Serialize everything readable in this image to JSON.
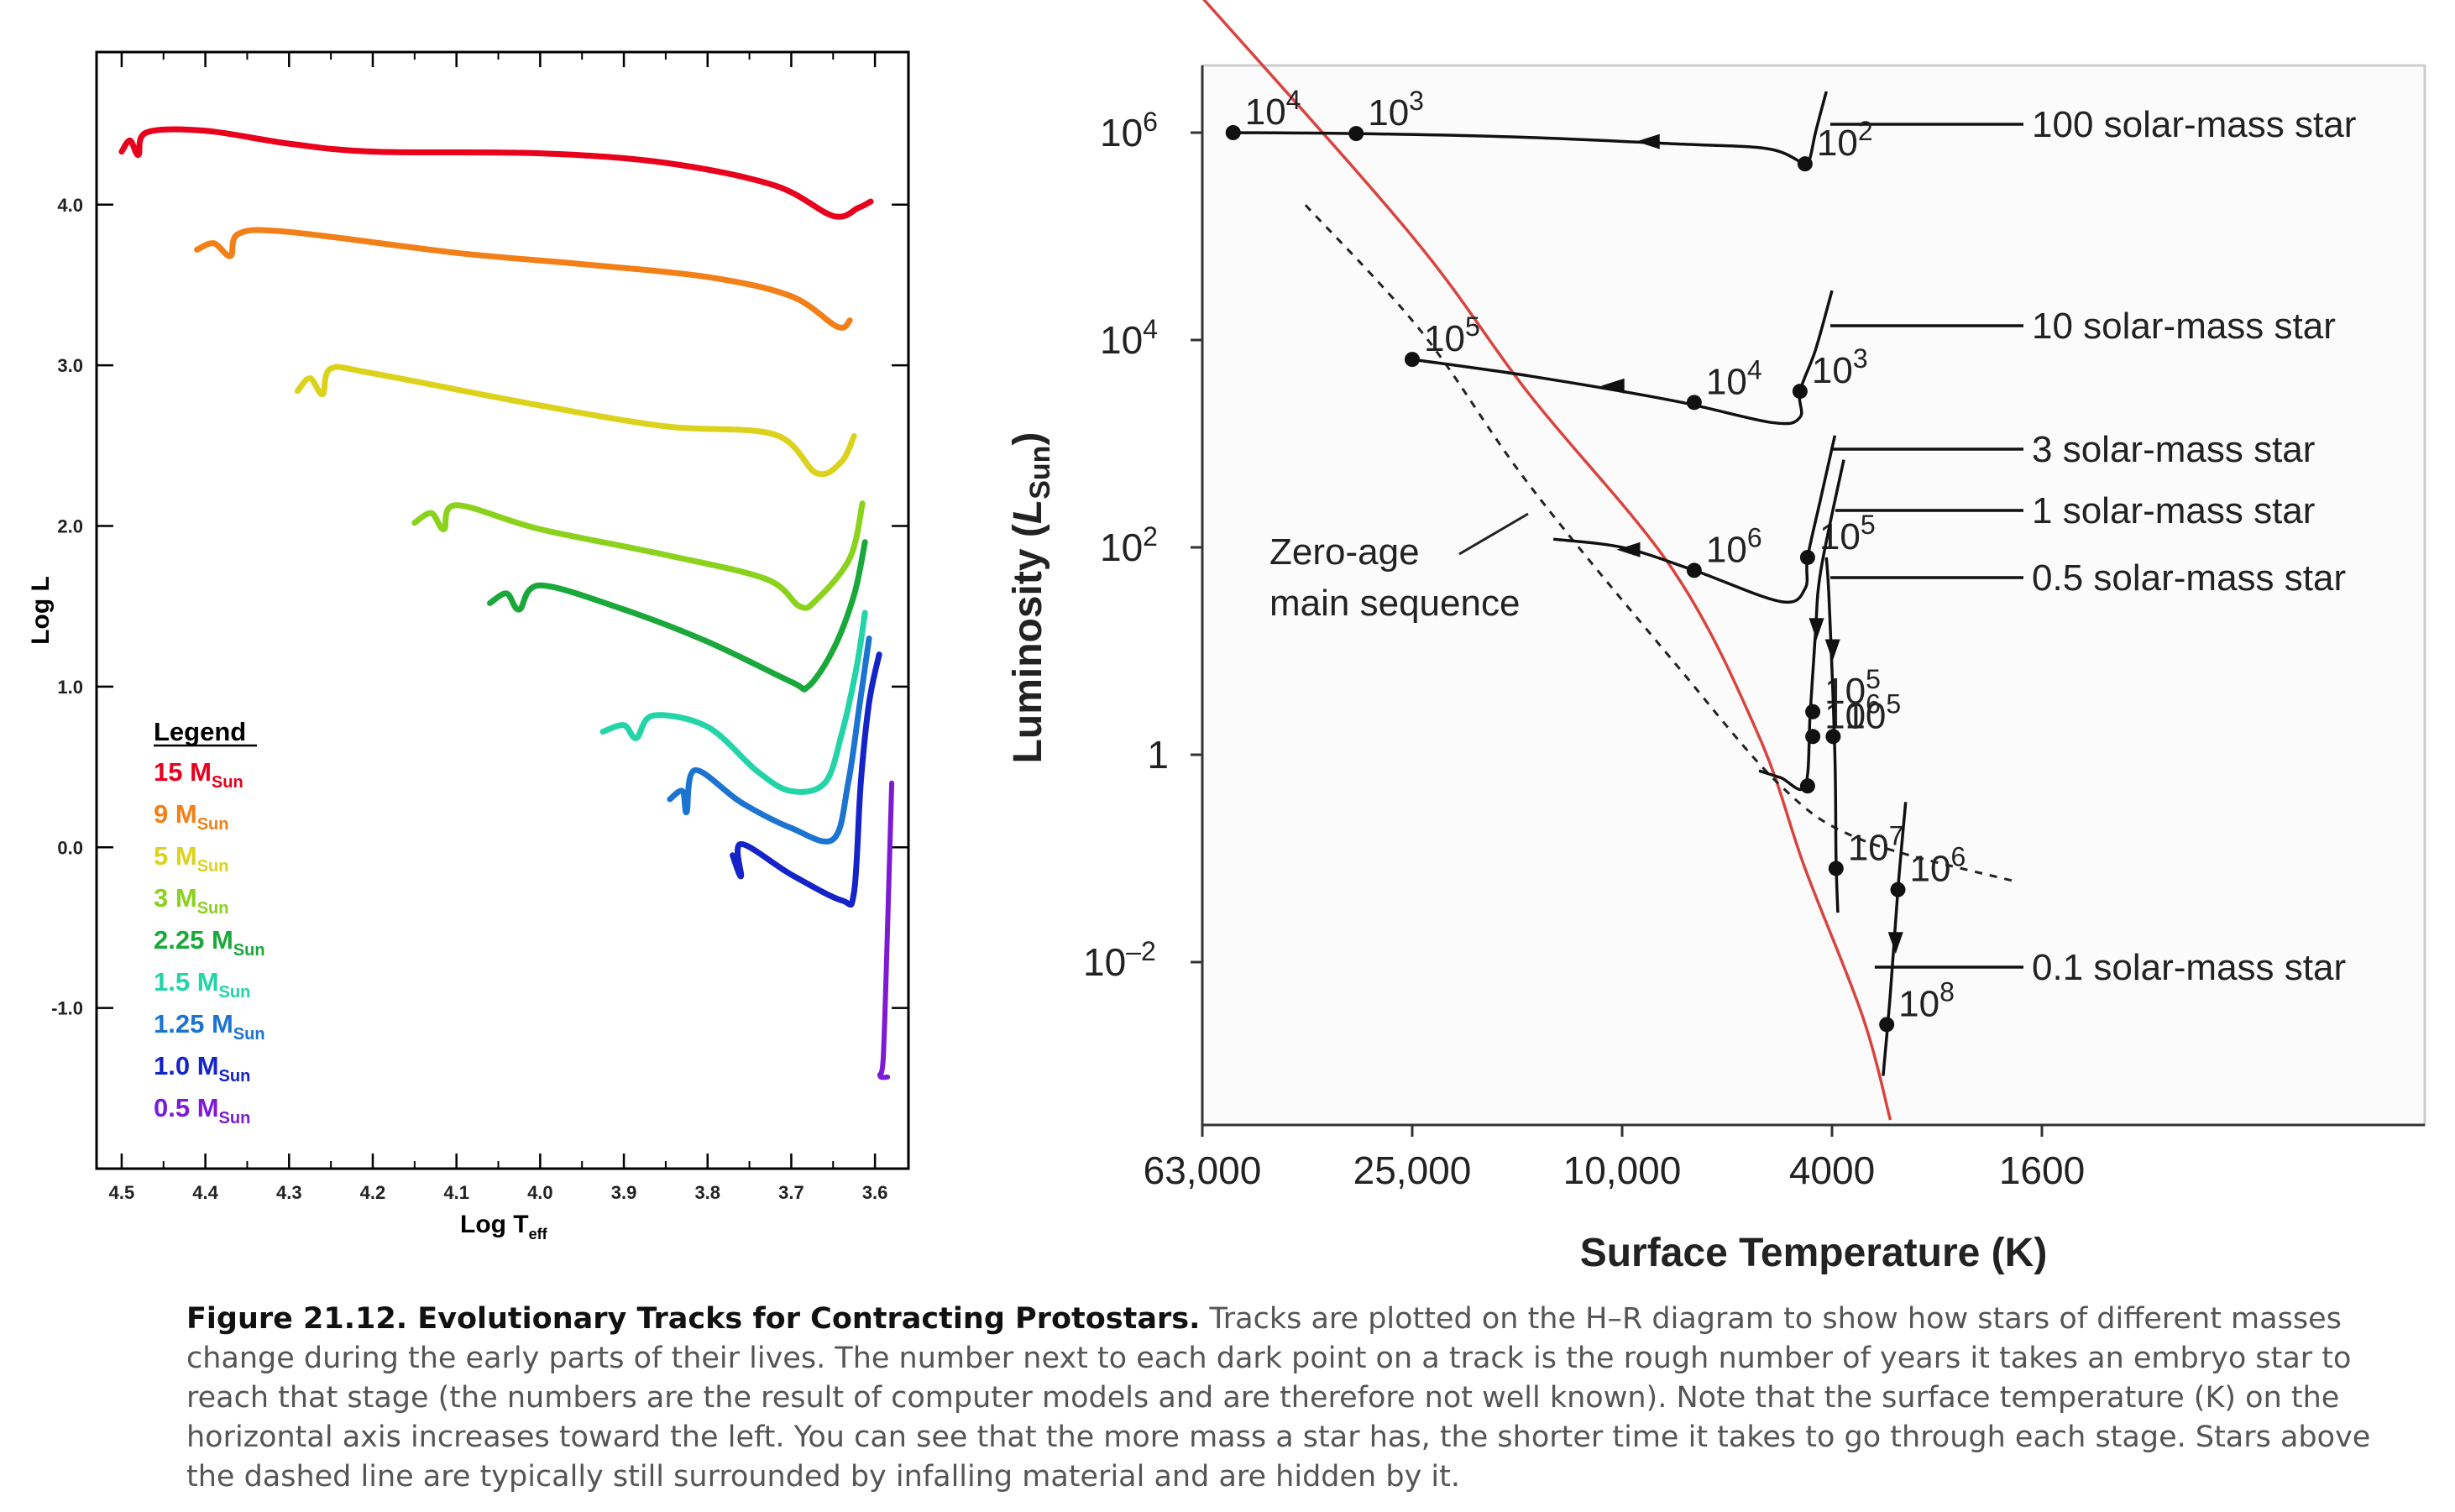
{
  "chart_data": [
    {
      "type": "line",
      "xlabel": "Log T",
      "xlabel_sub": "eff",
      "ylabel": "Log L",
      "xlim": [
        4.53,
        3.56
      ],
      "ylim": [
        -2.0,
        4.95
      ],
      "x_ticks": [
        "4.5",
        "4.4",
        "4.3",
        "4.2",
        "4.1",
        "4.0",
        "3.9",
        "3.8",
        "3.7",
        "3.6"
      ],
      "y_ticks": [
        "4.0",
        "3.0",
        "2.0",
        "1.0",
        "0.0",
        "-1.0"
      ],
      "legend": {
        "title": "Legend",
        "placement": "lower-left",
        "entries": [
          {
            "mass": "15 M",
            "sub": "Sun",
            "color": "#e8001c"
          },
          {
            "mass": "9 M",
            "sub": "Sun",
            "color": "#f27f17"
          },
          {
            "mass": "5 M",
            "sub": "Sun",
            "color": "#dcd21c"
          },
          {
            "mass": "3 M",
            "sub": "Sun",
            "color": "#8ad21c"
          },
          {
            "mass": "2.25 M",
            "sub": "Sun",
            "color": "#1aa83a"
          },
          {
            "mass": "1.5 M",
            "sub": "Sun",
            "color": "#22d4a8"
          },
          {
            "mass": "1.25 M",
            "sub": "Sun",
            "color": "#1c74d2"
          },
          {
            "mass": "1.0 M",
            "sub": "Sun",
            "color": "#1424c8"
          },
          {
            "mass": "0.5 M",
            "sub": "Sun",
            "color": "#7c1ad4"
          }
        ]
      },
      "series": [
        {
          "color": "#e8001c",
          "points": [
            [
              4.5,
              4.33
            ],
            [
              4.49,
              4.4
            ],
            [
              4.48,
              4.31
            ],
            [
              4.47,
              4.45
            ],
            [
              4.4,
              4.46
            ],
            [
              4.3,
              4.38
            ],
            [
              4.2,
              4.33
            ],
            [
              4.0,
              4.32
            ],
            [
              3.85,
              4.26
            ],
            [
              3.72,
              4.12
            ],
            [
              3.65,
              3.93
            ],
            [
              3.62,
              3.98
            ],
            [
              3.605,
              4.02
            ]
          ]
        },
        {
          "color": "#f27f17",
          "points": [
            [
              4.41,
              3.72
            ],
            [
              4.39,
              3.76
            ],
            [
              4.37,
              3.68
            ],
            [
              4.36,
              3.82
            ],
            [
              4.3,
              3.83
            ],
            [
              4.1,
              3.7
            ],
            [
              3.95,
              3.63
            ],
            [
              3.8,
              3.55
            ],
            [
              3.7,
              3.43
            ],
            [
              3.645,
              3.24
            ],
            [
              3.63,
              3.28
            ]
          ]
        },
        {
          "color": "#dcd21c",
          "points": [
            [
              4.29,
              2.84
            ],
            [
              4.275,
              2.92
            ],
            [
              4.26,
              2.82
            ],
            [
              4.25,
              2.98
            ],
            [
              4.2,
              2.95
            ],
            [
              4.0,
              2.75
            ],
            [
              3.85,
              2.62
            ],
            [
              3.72,
              2.57
            ],
            [
              3.67,
              2.33
            ],
            [
              3.64,
              2.4
            ],
            [
              3.625,
              2.56
            ]
          ]
        },
        {
          "color": "#8ad21c",
          "points": [
            [
              4.15,
              2.02
            ],
            [
              4.13,
              2.08
            ],
            [
              4.115,
              1.98
            ],
            [
              4.1,
              2.13
            ],
            [
              4.0,
              1.98
            ],
            [
              3.85,
              1.82
            ],
            [
              3.73,
              1.67
            ],
            [
              3.69,
              1.5
            ],
            [
              3.67,
              1.54
            ],
            [
              3.63,
              1.8
            ],
            [
              3.615,
              2.14
            ]
          ]
        },
        {
          "color": "#1aa83a",
          "points": [
            [
              4.06,
              1.52
            ],
            [
              4.04,
              1.58
            ],
            [
              4.025,
              1.48
            ],
            [
              4.0,
              1.63
            ],
            [
              3.9,
              1.48
            ],
            [
              3.8,
              1.28
            ],
            [
              3.7,
              1.03
            ],
            [
              3.68,
              1.0
            ],
            [
              3.65,
              1.23
            ],
            [
              3.625,
              1.57
            ],
            [
              3.612,
              1.9
            ]
          ]
        },
        {
          "color": "#22d4a8",
          "points": [
            [
              3.925,
              0.72
            ],
            [
              3.9,
              0.76
            ],
            [
              3.885,
              0.68
            ],
            [
              3.865,
              0.82
            ],
            [
              3.8,
              0.75
            ],
            [
              3.74,
              0.47
            ],
            [
              3.7,
              0.35
            ],
            [
              3.66,
              0.4
            ],
            [
              3.64,
              0.7
            ],
            [
              3.622,
              1.12
            ],
            [
              3.612,
              1.46
            ]
          ]
        },
        {
          "color": "#1c74d2",
          "points": [
            [
              3.845,
              0.3
            ],
            [
              3.83,
              0.35
            ],
            [
              3.825,
              0.22
            ],
            [
              3.815,
              0.48
            ],
            [
              3.76,
              0.28
            ],
            [
              3.7,
              0.12
            ],
            [
              3.65,
              0.05
            ],
            [
              3.632,
              0.4
            ],
            [
              3.618,
              0.9
            ],
            [
              3.607,
              1.3
            ]
          ]
        },
        {
          "color": "#1424c8",
          "points": [
            [
              3.77,
              -0.05
            ],
            [
              3.76,
              -0.18
            ],
            [
              3.76,
              0.02
            ],
            [
              3.7,
              -0.17
            ],
            [
              3.64,
              -0.33
            ],
            [
              3.625,
              -0.28
            ],
            [
              3.617,
              0.4
            ],
            [
              3.607,
              0.9
            ],
            [
              3.595,
              1.2
            ]
          ]
        },
        {
          "color": "#7c1ad4",
          "points": [
            [
              3.58,
              0.4
            ],
            [
              3.585,
              -0.5
            ],
            [
              3.59,
              -1.3
            ],
            [
              3.594,
              -1.42
            ],
            [
              3.585,
              -1.43
            ]
          ]
        }
      ]
    },
    {
      "type": "line",
      "xlabel": "Surface Temperature (K)",
      "ylabel_main": "Luminosity (",
      "ylabel_l": "L",
      "ylabel_sub": "Sun",
      "ylabel_end": ")",
      "x_scale": "log",
      "y_scale": "log",
      "x_ticks": [
        {
          "value": 63000,
          "label": "63,000"
        },
        {
          "value": 25000,
          "label": "25,000"
        },
        {
          "value": 10000,
          "label": "10,000"
        },
        {
          "value": 4000,
          "label": "4000"
        },
        {
          "value": 1600,
          "label": "1600"
        }
      ],
      "y_ticks": [
        {
          "value": 1000000,
          "base": "10",
          "exp": "6"
        },
        {
          "value": 10000,
          "base": "10",
          "exp": "4"
        },
        {
          "value": 100,
          "base": "10",
          "exp": "2"
        },
        {
          "value": 1,
          "base": "1",
          "exp": ""
        },
        {
          "value": 0.01,
          "base": "10",
          "exp": "–2"
        }
      ],
      "zams": {
        "label_lines": [
          "Zero-age",
          "main sequence"
        ],
        "color": "#d9443f",
        "points": [
          [
            63000,
            20000000
          ],
          [
            25000,
            100000
          ],
          [
            15000,
            3000
          ],
          [
            8000,
            60
          ],
          [
            5500,
            1.5
          ],
          [
            4500,
            0.08
          ],
          [
            3500,
            0.003
          ],
          [
            3100,
            0.0003
          ]
        ]
      },
      "dashed_line": {
        "points": [
          [
            40000,
            200000
          ],
          [
            24000,
            12000
          ],
          [
            15000,
            400
          ],
          [
            8000,
            8
          ],
          [
            5000,
            0.5
          ],
          [
            3500,
            0.15
          ],
          [
            1800,
            0.06
          ]
        ]
      },
      "tracks": [
        {
          "label": "100 solar-mass star",
          "points": [
            [
              55000,
              1000000
            ],
            [
              32000,
              980000
            ],
            [
              15000,
              900000
            ],
            [
              8000,
              780000
            ],
            [
              5300,
              700000
            ],
            [
              4500,
              500000
            ],
            [
              4400,
              580000
            ],
            [
              4300,
              1000000
            ],
            [
              4100,
              2500000
            ]
          ],
          "stages": [
            {
              "t": 55000,
              "l": 1000000,
              "exp": "4"
            },
            {
              "t": 32000,
              "l": 980000,
              "exp": "3"
            },
            {
              "t": 4500,
              "l": 500000,
              "exp": "2"
            }
          ],
          "arrow": {
            "t": 9000,
            "l": 820000
          }
        },
        {
          "label": "10 solar-mass star",
          "points": [
            [
              25000,
              6500
            ],
            [
              15000,
              4500
            ],
            [
              8000,
              2600
            ],
            [
              5200,
              1600
            ],
            [
              4600,
              1800
            ],
            [
              4600,
              3200
            ],
            [
              4300,
              8000
            ],
            [
              4000,
              30000
            ]
          ],
          "stages": [
            {
              "t": 25000,
              "l": 6500,
              "exp": "5"
            },
            {
              "t": 7300,
              "l": 2500,
              "exp": "4"
            },
            {
              "t": 4600,
              "l": 3200,
              "exp": "3"
            }
          ],
          "arrow": {
            "t": 10500,
            "l": 3600
          }
        },
        {
          "label": "3 solar-mass star",
          "points": [
            [
              13500,
              120
            ],
            [
              10000,
              100
            ],
            [
              7300,
              60
            ],
            [
              5000,
              30
            ],
            [
              4500,
              40
            ],
            [
              4450,
              80
            ],
            [
              4200,
              300
            ],
            [
              3950,
              1200
            ]
          ],
          "stages": [
            {
              "t": 7300,
              "l": 60,
              "exp": "6"
            },
            {
              "t": 4450,
              "l": 80,
              "exp": "5"
            }
          ],
          "arrow": {
            "t": 9800,
            "l": 95
          }
        },
        {
          "label": "1 solar-mass star",
          "points": [
            [
              5500,
              0.7
            ],
            [
              5000,
              0.6
            ],
            [
              4500,
              0.5
            ],
            [
              4400,
              2.5
            ],
            [
              4300,
              15
            ],
            [
              4200,
              60
            ],
            [
              3800,
              700
            ]
          ],
          "stages": [
            {
              "t": 4450,
              "l": 0.5,
              "exp": ""
            },
            {
              "t": 4350,
              "l": 1.5,
              "exp": "6"
            },
            {
              "t": 4350,
              "l": 2.6,
              "exp": "5"
            }
          ],
          "arrow": {
            "t": 4280,
            "l": 16
          }
        },
        {
          "label": "0.5 solar-mass star",
          "points": [
            [
              4100,
              80
            ],
            [
              4050,
              30
            ],
            [
              3950,
              1
            ],
            [
              3930,
              0.1
            ],
            [
              3900,
              0.03
            ]
          ],
          "stages": [
            {
              "t": 3930,
              "l": 0.08,
              "exp": "7"
            },
            {
              "t": 3980,
              "l": 1.5,
              "exp": "5"
            }
          ],
          "arrow": {
            "t": 3990,
            "l": 10
          }
        },
        {
          "label": "0.1 solar-mass star",
          "points": [
            [
              2900,
              0.35
            ],
            [
              3000,
              0.05
            ],
            [
              3100,
              0.005
            ],
            [
              3200,
              0.0008
            ]
          ],
          "stages": [
            {
              "t": 3000,
              "l": 0.05,
              "exp": "6"
            },
            {
              "t": 3150,
              "l": 0.0025,
              "exp": "8"
            }
          ],
          "arrow": {
            "t": 3030,
            "l": 0.015
          }
        }
      ]
    }
  ],
  "caption": {
    "title": "Figure 21.12. Evolutionary Tracks for Contracting Protostars.",
    "text": "Tracks are plotted on the H–R diagram to show how stars of different masses change during the early parts of their lives. The number next to each dark point on a track is the rough number of years it takes an embryo star to reach that stage (the numbers are the result of computer models and are therefore not well known). Note that the surface temperature (K) on the horizontal axis increases toward the left. You can see that the more mass a star has, the shorter time it takes to go through each stage. Stars above the dashed line are typically still surrounded by infalling material and are hidden by it."
  }
}
